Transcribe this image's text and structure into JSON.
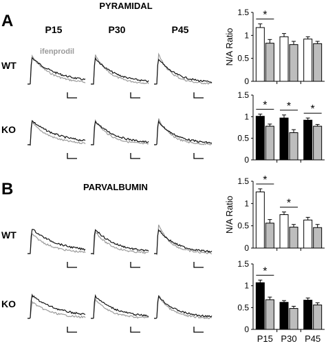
{
  "figure": {
    "panel_labels": [
      "A",
      "B"
    ],
    "section_titles": [
      "PYRAMIDAL",
      "PARVALBUMIN"
    ],
    "age_labels": [
      "P15",
      "P30",
      "P45"
    ],
    "genotype_labels": [
      "WT",
      "KO"
    ],
    "trace_annotation": "ifenprodil",
    "colors": {
      "control_trace": "#111111",
      "ifenprodil_trace": "#9a9a9a",
      "wt_bar": "#ffffff",
      "ko_bar": "#000000",
      "ifenprodil_bar": "#bdbdbd"
    }
  },
  "chart_data": [
    {
      "type": "bar",
      "panel": "A",
      "row": "WT",
      "categories": [
        "P15",
        "P30",
        "P45"
      ],
      "ylabel": "N/A Ratio",
      "ylim": [
        0,
        1.5
      ],
      "yticks": [
        "0",
        "0.5",
        "1",
        "1.5"
      ],
      "show_xticklabels": false,
      "series": [
        {
          "values": [
            1.17,
            0.97,
            0.92
          ],
          "errors": [
            0.08,
            0.07,
            0.05
          ],
          "color": "#ffffff"
        },
        {
          "values": [
            0.83,
            0.8,
            0.82
          ],
          "errors": [
            0.08,
            0.07,
            0.05
          ],
          "color": "#bdbdbd"
        }
      ],
      "significance": [
        {
          "category": 0,
          "label": "*"
        }
      ]
    },
    {
      "type": "bar",
      "panel": "A",
      "row": "KO",
      "categories": [
        "P15",
        "P30",
        "P45"
      ],
      "ylabel": "",
      "ylim": [
        0,
        1.5
      ],
      "yticks": [
        "0",
        "0.5",
        "1",
        "1.5"
      ],
      "show_xticklabels": false,
      "series": [
        {
          "values": [
            1.01,
            0.97,
            0.92
          ],
          "errors": [
            0.05,
            0.07,
            0.05
          ],
          "color": "#000000"
        },
        {
          "values": [
            0.78,
            0.63,
            0.78
          ],
          "errors": [
            0.05,
            0.07,
            0.04
          ],
          "color": "#bdbdbd"
        }
      ],
      "significance": [
        {
          "category": 0,
          "label": "*"
        },
        {
          "category": 1,
          "label": "*"
        },
        {
          "category": 2,
          "label": "*"
        }
      ]
    },
    {
      "type": "bar",
      "panel": "B",
      "row": "WT",
      "categories": [
        "P15",
        "P30",
        "P45"
      ],
      "ylabel": "N/A Ratio",
      "ylim": [
        0,
        1.5
      ],
      "yticks": [
        "0",
        "0.5",
        "1",
        "1.5"
      ],
      "show_xticklabels": false,
      "series": [
        {
          "values": [
            1.26,
            0.75,
            0.63
          ],
          "errors": [
            0.07,
            0.06,
            0.06
          ],
          "color": "#ffffff"
        },
        {
          "values": [
            0.56,
            0.47,
            0.46
          ],
          "errors": [
            0.08,
            0.06,
            0.07
          ],
          "color": "#bdbdbd"
        }
      ],
      "significance": [
        {
          "category": 0,
          "label": "*"
        },
        {
          "category": 1,
          "label": "*"
        }
      ]
    },
    {
      "type": "bar",
      "panel": "B",
      "row": "KO",
      "categories": [
        "P15",
        "P30",
        "P45"
      ],
      "ylabel": "",
      "ylim": [
        0,
        1.5
      ],
      "yticks": [
        "0",
        "0.5",
        "1",
        "1.5"
      ],
      "show_xticklabels": true,
      "series": [
        {
          "values": [
            1.07,
            0.62,
            0.67
          ],
          "errors": [
            0.06,
            0.04,
            0.05
          ],
          "color": "#000000"
        },
        {
          "values": [
            0.68,
            0.48,
            0.56
          ],
          "errors": [
            0.06,
            0.05,
            0.05
          ],
          "color": "#bdbdbd"
        }
      ],
      "significance": [
        {
          "category": 0,
          "label": "*"
        }
      ]
    }
  ]
}
